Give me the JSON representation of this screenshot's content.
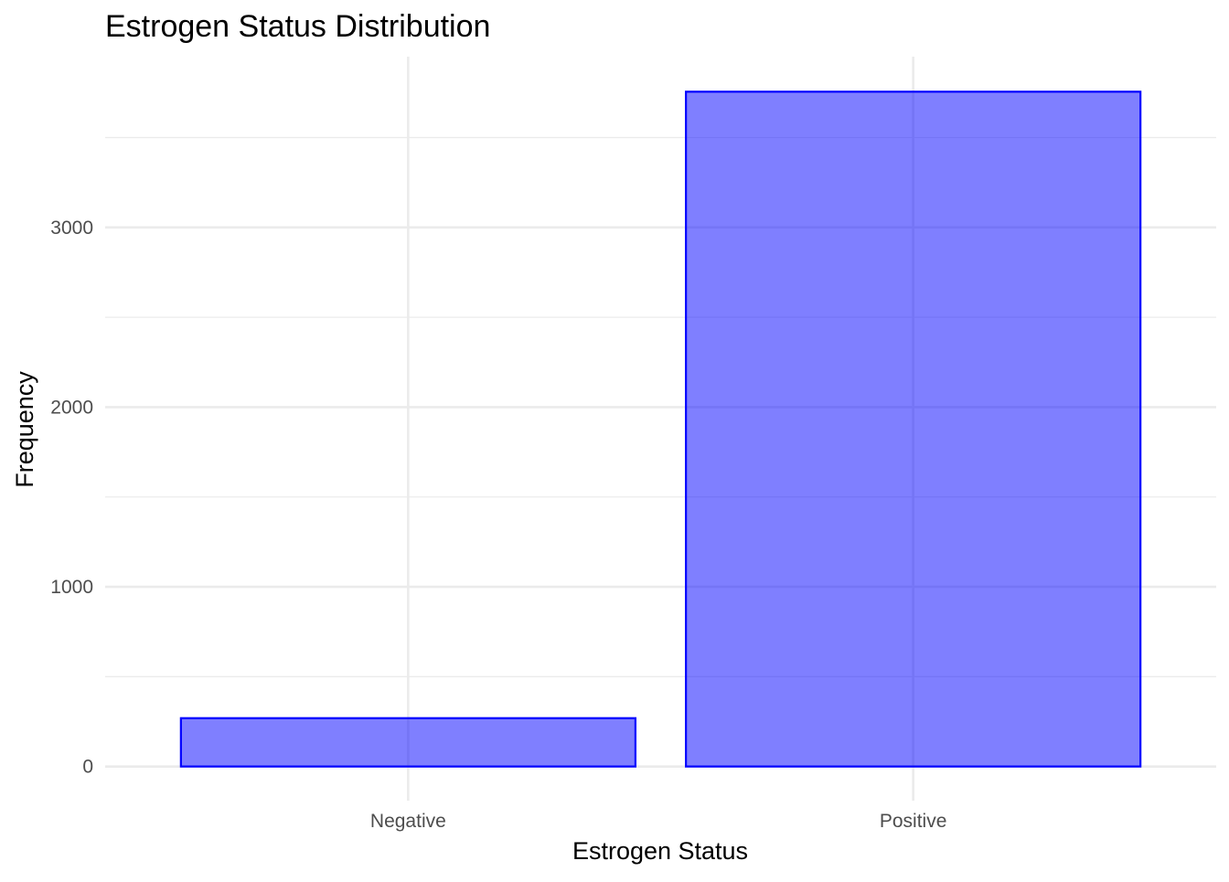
{
  "chart_data": {
    "type": "bar",
    "title": "Estrogen Status Distribution",
    "xlabel": "Estrogen Status",
    "ylabel": "Frequency",
    "categories": [
      "Negative",
      "Positive"
    ],
    "values": [
      269,
      3755
    ],
    "ylim": [
      -190,
      3950
    ],
    "y_ticks": [
      0,
      1000,
      2000,
      3000
    ],
    "y_tick_labels": [
      "0",
      "1000",
      "2000",
      "3000"
    ],
    "grid": true,
    "legend": "none",
    "colors": {
      "bar_fill": "#0000ff",
      "bar_fill_opacity": 0.5,
      "bar_outline": "#0000ff",
      "grid": "#ebebeb",
      "tick_text": "#4d4d4d",
      "text": "#000000"
    }
  }
}
